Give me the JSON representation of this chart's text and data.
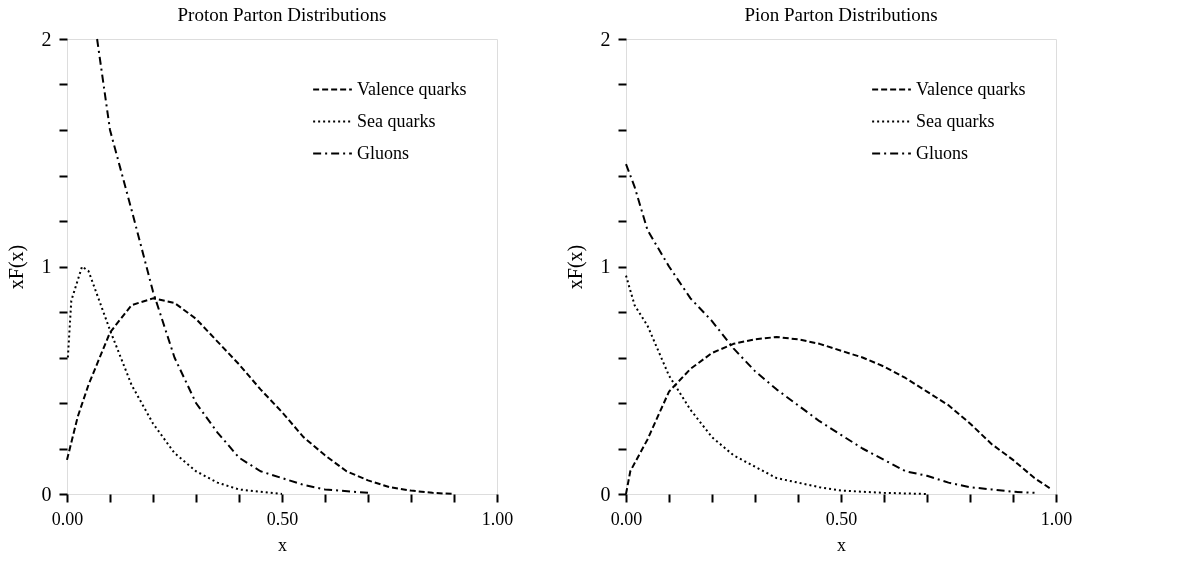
{
  "chart_data": [
    {
      "type": "line",
      "title": "Proton Parton Distributions",
      "xlabel": "x",
      "ylabel": "xF(x)",
      "xlim": [
        0,
        1
      ],
      "ylim": [
        0,
        2
      ],
      "xticks": [
        {
          "value": 0,
          "label": "0.00"
        },
        {
          "value": 0.1,
          "label": null
        },
        {
          "value": 0.2,
          "label": null
        },
        {
          "value": 0.3,
          "label": null
        },
        {
          "value": 0.4,
          "label": null
        },
        {
          "value": 0.5,
          "label": "0.50"
        },
        {
          "value": 0.6,
          "label": null
        },
        {
          "value": 0.7,
          "label": null
        },
        {
          "value": 0.8,
          "label": null
        },
        {
          "value": 0.9,
          "label": null
        },
        {
          "value": 1,
          "label": "1.00"
        }
      ],
      "yticks": [
        0,
        {
          "value": 0.2,
          "label": null
        },
        {
          "value": 0.4,
          "label": null
        },
        {
          "value": 0.6,
          "label": null
        },
        {
          "value": 0.8,
          "label": null
        },
        1,
        {
          "value": 1.2,
          "label": null
        },
        {
          "value": 1.4,
          "label": null
        },
        {
          "value": 1.6,
          "label": null
        },
        {
          "value": 1.8,
          "label": null
        },
        2
      ],
      "grid": false,
      "legend": "top right",
      "marker": "none",
      "series": [
        {
          "name": "Valence quarks",
          "color": "#000000",
          "line_style": "dashed",
          "x": [
            0,
            0.025,
            0.05,
            0.1,
            0.15,
            0.2,
            0.25,
            0.3,
            0.35,
            0.4,
            0.45,
            0.5,
            0.55,
            0.6,
            0.65,
            0.7,
            0.75,
            0.8,
            0.85,
            0.9
          ],
          "values": [
            0.15,
            0.34,
            0.48,
            0.71,
            0.83,
            0.86,
            0.84,
            0.77,
            0.67,
            0.57,
            0.46,
            0.36,
            0.25,
            0.17,
            0.1,
            0.06,
            0.03,
            0.015,
            0.005,
            0
          ]
        },
        {
          "name": "Sea quarks",
          "color": "#000000",
          "line_style": "dotted",
          "x": [
            0.002,
            0.01,
            0.035,
            0.05,
            0.075,
            0.1,
            0.15,
            0.2,
            0.25,
            0.3,
            0.35,
            0.4,
            0.45,
            0.5
          ],
          "values": [
            0.6,
            0.85,
            1.0,
            0.98,
            0.85,
            0.72,
            0.48,
            0.31,
            0.18,
            0.1,
            0.05,
            0.02,
            0.01,
            0
          ]
        },
        {
          "name": "Gluons",
          "color": "#000000",
          "line_style": "dashdot",
          "x": [
            0.07,
            0.1,
            0.15,
            0.2,
            0.25,
            0.3,
            0.35,
            0.4,
            0.45,
            0.5,
            0.55,
            0.6,
            0.7
          ],
          "values": [
            2.0,
            1.6,
            1.25,
            0.89,
            0.6,
            0.4,
            0.27,
            0.16,
            0.1,
            0.07,
            0.04,
            0.02,
            0.005
          ]
        }
      ]
    },
    {
      "type": "line",
      "title": "Pion Parton Distributions",
      "xlabel": "x",
      "ylabel": "xF(x)",
      "xlim": [
        0,
        1
      ],
      "ylim": [
        0,
        2
      ],
      "xticks": [
        {
          "value": 0,
          "label": "0.00"
        },
        {
          "value": 0.1,
          "label": null
        },
        {
          "value": 0.2,
          "label": null
        },
        {
          "value": 0.3,
          "label": null
        },
        {
          "value": 0.4,
          "label": null
        },
        {
          "value": 0.5,
          "label": "0.50"
        },
        {
          "value": 0.6,
          "label": null
        },
        {
          "value": 0.7,
          "label": null
        },
        {
          "value": 0.8,
          "label": null
        },
        {
          "value": 0.9,
          "label": null
        },
        {
          "value": 1,
          "label": "1.00"
        }
      ],
      "yticks": [
        0,
        {
          "value": 0.2,
          "label": null
        },
        {
          "value": 0.4,
          "label": null
        },
        {
          "value": 0.6,
          "label": null
        },
        {
          "value": 0.8,
          "label": null
        },
        1,
        {
          "value": 1.2,
          "label": null
        },
        {
          "value": 1.4,
          "label": null
        },
        {
          "value": 1.6,
          "label": null
        },
        {
          "value": 1.8,
          "label": null
        },
        2
      ],
      "grid": false,
      "legend": "top right",
      "marker": "none",
      "series": [
        {
          "name": "Valence quarks",
          "color": "#000000",
          "line_style": "dashed",
          "x": [
            0,
            0.01,
            0.05,
            0.1,
            0.15,
            0.2,
            0.25,
            0.3,
            0.35,
            0.4,
            0.45,
            0.5,
            0.55,
            0.6,
            0.65,
            0.7,
            0.75,
            0.8,
            0.85,
            0.9,
            0.95,
            0.99
          ],
          "values": [
            0,
            0.1,
            0.24,
            0.45,
            0.55,
            0.62,
            0.66,
            0.68,
            0.69,
            0.68,
            0.66,
            0.63,
            0.6,
            0.56,
            0.51,
            0.45,
            0.39,
            0.31,
            0.22,
            0.15,
            0.07,
            0.02
          ]
        },
        {
          "name": "Sea quarks",
          "color": "#000000",
          "line_style": "dotted",
          "x": [
            0,
            0.02,
            0.05,
            0.1,
            0.15,
            0.2,
            0.25,
            0.3,
            0.35,
            0.4,
            0.45,
            0.5,
            0.55,
            0.6,
            0.7
          ],
          "values": [
            0.96,
            0.83,
            0.74,
            0.52,
            0.37,
            0.25,
            0.17,
            0.12,
            0.07,
            0.05,
            0.03,
            0.015,
            0.01,
            0.005,
            0
          ]
        },
        {
          "name": "Gluons",
          "color": "#000000",
          "line_style": "dashdot",
          "x": [
            0,
            0.02,
            0.05,
            0.1,
            0.15,
            0.2,
            0.25,
            0.3,
            0.35,
            0.4,
            0.45,
            0.5,
            0.55,
            0.6,
            0.65,
            0.7,
            0.75,
            0.8,
            0.85,
            0.9,
            0.95
          ],
          "values": [
            1.45,
            1.35,
            1.16,
            1.0,
            0.86,
            0.76,
            0.64,
            0.54,
            0.46,
            0.39,
            0.32,
            0.26,
            0.2,
            0.15,
            0.1,
            0.08,
            0.05,
            0.03,
            0.02,
            0.01,
            0.005
          ]
        }
      ]
    }
  ]
}
